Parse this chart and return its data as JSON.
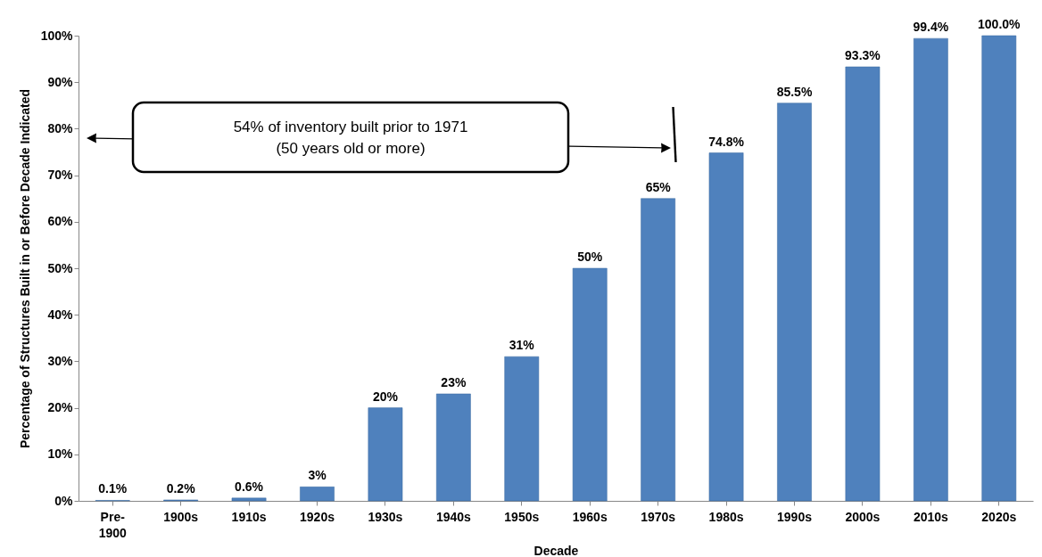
{
  "chart_data": {
    "type": "bar",
    "xlabel": "Decade",
    "ylabel": "Percentage of Structures Built in or Before Decade Indicated",
    "categories": [
      "Pre-\n1900",
      "1900s",
      "1910s",
      "1920s",
      "1930s",
      "1940s",
      "1950s",
      "1960s",
      "1970s",
      "1980s",
      "1990s",
      "2000s",
      "2010s",
      "2020s"
    ],
    "values": [
      0.1,
      0.2,
      0.6,
      3,
      20,
      23,
      31,
      50,
      65,
      74.8,
      85.5,
      93.3,
      99.4,
      100
    ],
    "value_labels": [
      "0.1%",
      "0.2%",
      "0.6%",
      "3%",
      "20%",
      "23%",
      "31%",
      "50%",
      "65%",
      "74.8%",
      "85.5%",
      "93.3%",
      "99.4%",
      "100.0%"
    ],
    "color": "#4f81bd",
    "ylim": [
      0,
      100
    ],
    "yticks": [
      {
        "value": 0,
        "label": "0%"
      },
      {
        "value": 10,
        "label": "10%"
      },
      {
        "value": 20,
        "label": "20%"
      },
      {
        "value": 30,
        "label": "30%"
      },
      {
        "value": 40,
        "label": "40%"
      },
      {
        "value": 50,
        "label": "50%"
      },
      {
        "value": 60,
        "label": "60%"
      },
      {
        "value": 70,
        "label": "70%"
      },
      {
        "value": 80,
        "label": "80%"
      },
      {
        "value": 90,
        "label": "90%"
      },
      {
        "value": 100,
        "label": "100%"
      }
    ],
    "grid": false,
    "annotations": [
      "54% of  inventory built prior to 1971\n(50 years old or more)"
    ]
  }
}
